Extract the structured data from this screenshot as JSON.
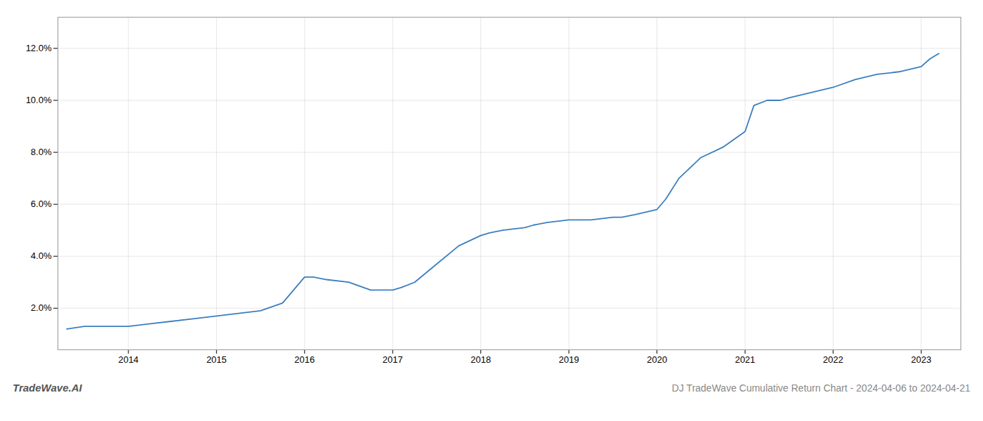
{
  "chart_data": {
    "type": "line",
    "title": "DJ TradeWave Cumulative Return Chart - 2024-04-06 to 2024-04-21",
    "annotations": [
      "TradeWave.AI"
    ],
    "color": "#3a7ebf",
    "x": [
      2013.3,
      2013.5,
      2013.75,
      2014.0,
      2014.25,
      2014.5,
      2014.75,
      2015.0,
      2015.25,
      2015.5,
      2015.75,
      2016.0,
      2016.1,
      2016.25,
      2016.5,
      2016.75,
      2017.0,
      2017.1,
      2017.25,
      2017.5,
      2017.75,
      2018.0,
      2018.1,
      2018.25,
      2018.5,
      2018.6,
      2018.75,
      2019.0,
      2019.25,
      2019.5,
      2019.6,
      2019.75,
      2020.0,
      2020.1,
      2020.25,
      2020.5,
      2020.75,
      2021.0,
      2021.1,
      2021.25,
      2021.4,
      2021.5,
      2021.75,
      2022.0,
      2022.25,
      2022.5,
      2022.75,
      2023.0,
      2023.1,
      2023.2
    ],
    "values": [
      0.012,
      0.013,
      0.013,
      0.013,
      0.014,
      0.015,
      0.016,
      0.017,
      0.018,
      0.019,
      0.022,
      0.032,
      0.032,
      0.031,
      0.03,
      0.027,
      0.027,
      0.028,
      0.03,
      0.037,
      0.044,
      0.048,
      0.049,
      0.05,
      0.051,
      0.052,
      0.053,
      0.054,
      0.054,
      0.055,
      0.055,
      0.056,
      0.058,
      0.062,
      0.07,
      0.078,
      0.082,
      0.088,
      0.098,
      0.1,
      0.1,
      0.101,
      0.103,
      0.105,
      0.108,
      0.11,
      0.111,
      0.113,
      0.116,
      0.118
    ],
    "xlim": [
      2013.2,
      2023.45
    ],
    "ylim": [
      0.004,
      0.132
    ],
    "xticks": [
      2014,
      2015,
      2016,
      2017,
      2018,
      2019,
      2020,
      2021,
      2022,
      2023
    ],
    "yticks": [
      {
        "value": 0.02,
        "label": "2.0%"
      },
      {
        "value": 0.04,
        "label": "4.0%"
      },
      {
        "value": 0.06,
        "label": "6.0%"
      },
      {
        "value": 0.08,
        "label": "8.0%"
      },
      {
        "value": 0.1,
        "label": "10.0%"
      },
      {
        "value": 0.12,
        "label": "12.0%"
      }
    ],
    "grid": true
  }
}
